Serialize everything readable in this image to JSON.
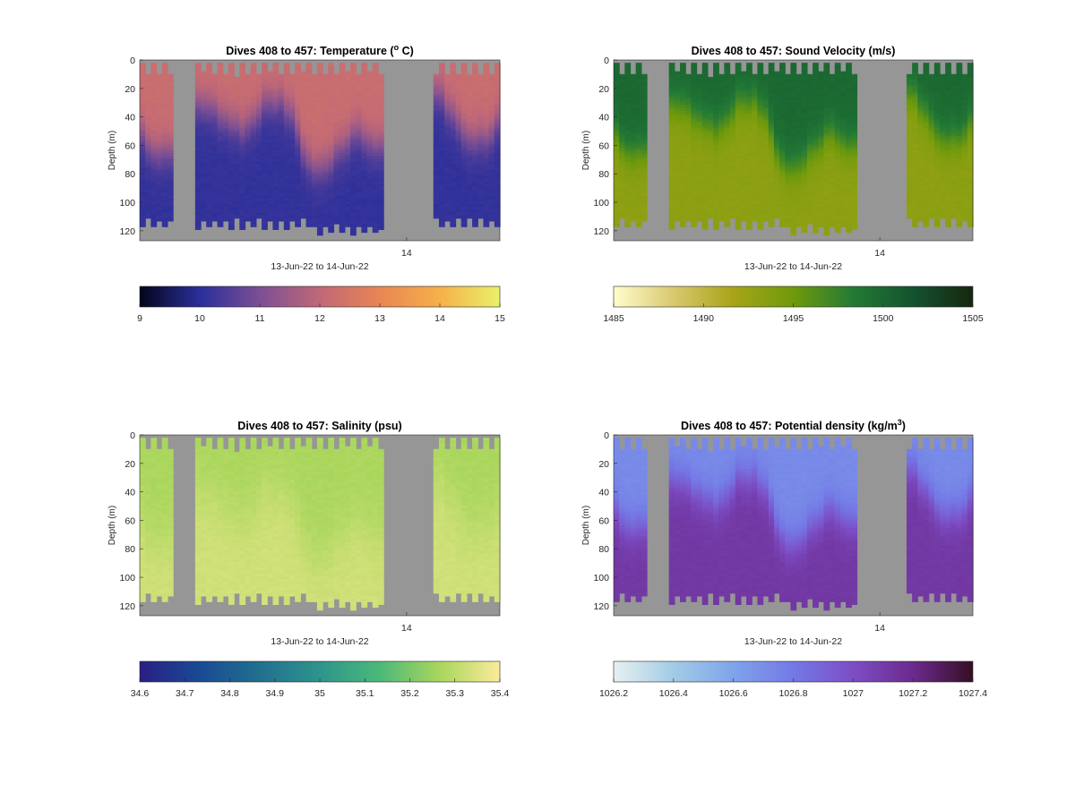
{
  "figure": {
    "background": "#ffffff",
    "nan_color": "#969696",
    "date_range_label": "13-Jun-22 to 14-Jun-22",
    "x_tick_label": "14",
    "y_label": "Depth (m)",
    "y_ticks": [
      "0",
      "20",
      "40",
      "60",
      "80",
      "100",
      "120"
    ]
  },
  "chart_data": [
    {
      "type": "heatmap",
      "title": "Dives 408 to 457: Temperature (",
      "title_sup": "o",
      "title_suffix": " C)",
      "xlabel": "13-Jun-22 to 14-Jun-22",
      "ylabel": "Depth (m)",
      "ylim": [
        0,
        127
      ],
      "x_ticks": [
        "14"
      ],
      "y_ticks": [
        0,
        20,
        40,
        60,
        80,
        100,
        120
      ],
      "variable": "temperature",
      "dives": [
        408,
        457
      ],
      "colormap": "thermal",
      "colormap_stops": [
        "#03051a",
        "#2a2f9b",
        "#7c4f94",
        "#c06877",
        "#e88654",
        "#f6b04a",
        "#e9f169"
      ],
      "clim": [
        9,
        15
      ],
      "colorbar_ticks": [
        "9",
        "10",
        "11",
        "12",
        "13",
        "14",
        "15"
      ],
      "profile_type": "mixed_layer_over_cold_bottom",
      "surface_value": 12.2,
      "bottom_value": 10.1
    },
    {
      "type": "heatmap",
      "title": "Dives 408 to 457: Sound Velocity (m/s)",
      "title_sup": "",
      "title_suffix": "",
      "xlabel": "13-Jun-22 to 14-Jun-22",
      "ylabel": "Depth (m)",
      "ylim": [
        0,
        127
      ],
      "x_ticks": [
        "14"
      ],
      "y_ticks": [
        0,
        20,
        40,
        60,
        80,
        100,
        120
      ],
      "variable": "sound_velocity",
      "dives": [
        408,
        457
      ],
      "colormap": "speed",
      "colormap_stops": [
        "#fffdcd",
        "#d9c86f",
        "#a7a418",
        "#6f9a0c",
        "#237a35",
        "#13532f",
        "#17260f"
      ],
      "clim": [
        1485,
        1505
      ],
      "colorbar_ticks": [
        "1485",
        "1490",
        "1495",
        "1500",
        "1505"
      ],
      "profile_type": "mixed_layer_over_cold_bottom",
      "surface_value": 1499.8,
      "bottom_value": 1493.2
    },
    {
      "type": "heatmap",
      "title": "Dives 408 to 457: Salinity (psu)",
      "title_sup": "",
      "title_suffix": "",
      "xlabel": "13-Jun-22 to 14-Jun-22",
      "ylabel": "Depth (m)",
      "ylim": [
        0,
        127
      ],
      "x_ticks": [
        "14"
      ],
      "y_ticks": [
        0,
        20,
        40,
        60,
        80,
        100,
        120
      ],
      "variable": "salinity",
      "dives": [
        408,
        457
      ],
      "colormap": "haline",
      "colormap_stops": [
        "#291e86",
        "#1a4a93",
        "#20708e",
        "#2e948c",
        "#4cb97a",
        "#a9d65c",
        "#fbeb9a"
      ],
      "clim": [
        34.6,
        35.4
      ],
      "colorbar_ticks": [
        "34.6",
        "34.7",
        "34.8",
        "34.9",
        "35",
        "35.1",
        "35.2",
        "35.3",
        "35.4"
      ],
      "profile_type": "nearly_uniform",
      "surface_value": 35.27,
      "bottom_value": 35.33
    },
    {
      "type": "heatmap",
      "title": "Dives 408 to 457: Potential density (kg/m",
      "title_sup": "3",
      "title_suffix": ")",
      "xlabel": "13-Jun-22 to 14-Jun-22",
      "ylabel": "Depth (m)",
      "ylim": [
        0,
        127
      ],
      "x_ticks": [
        "14"
      ],
      "y_ticks": [
        0,
        20,
        40,
        60,
        80,
        100,
        120
      ],
      "variable": "potential_density",
      "dives": [
        408,
        457
      ],
      "colormap": "dense",
      "colormap_stops": [
        "#e6f1f1",
        "#a3cbe6",
        "#7ea4ea",
        "#7479e6",
        "#7c4ec5",
        "#6c2a8d",
        "#360e24"
      ],
      "clim": [
        1026.2,
        1027.4
      ],
      "colorbar_ticks": [
        "1026.2",
        "1026.4",
        "1026.6",
        "1026.8",
        "1027",
        "1027.2",
        "1027.4"
      ],
      "profile_type": "light_surface_over_dense_bottom",
      "surface_value": 1026.72,
      "bottom_value": 1027.12
    }
  ]
}
